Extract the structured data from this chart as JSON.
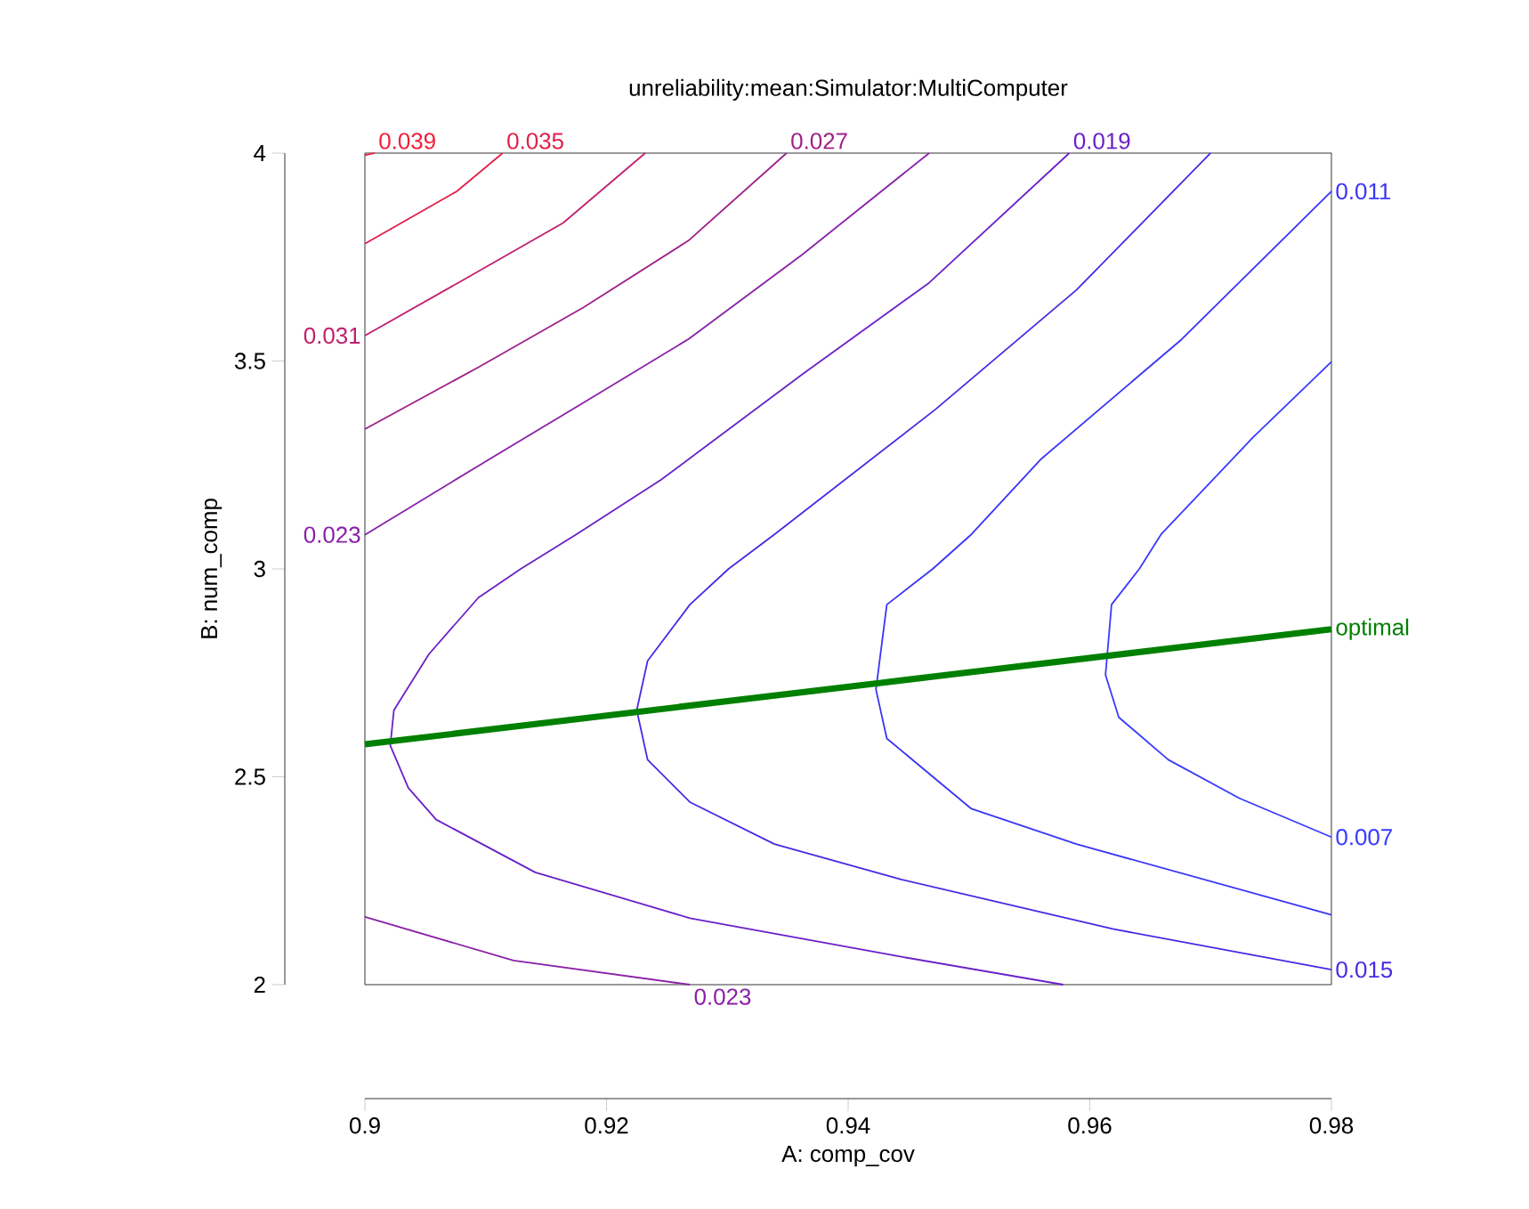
{
  "chart_data": {
    "type": "line",
    "title": "unreliability:mean:Simulator:MultiComputer",
    "xlabel": "A: comp_cov",
    "ylabel": "B: num_comp",
    "xlim": [
      0.9,
      0.98
    ],
    "ylim": [
      2,
      4
    ],
    "xticks": [
      0.9,
      0.92,
      0.94,
      0.96,
      0.98
    ],
    "yticks": [
      2,
      2.5,
      3,
      3.5,
      4
    ],
    "series": [
      {
        "name": "0.039",
        "color": "#f0203a",
        "x": [
          0.9008,
          0.9
        ],
        "values": [
          4,
          3.995
        ]
      },
      {
        "name": "0.035",
        "color": "#e0204a",
        "x": [
          0.9114,
          0.9076,
          0.9
        ],
        "values": [
          4,
          3.908,
          3.782
        ]
      },
      {
        "name": "0.031",
        "color": "#c0206e",
        "x": [
          0.9,
          0.9082,
          0.9164,
          0.9232
        ],
        "values": [
          3.561,
          3.696,
          3.832,
          4
        ]
      },
      {
        "name": "0.027",
        "color": "#a02088",
        "x": [
          0.9349,
          0.9268,
          0.9181,
          0.9094,
          0.9
        ],
        "values": [
          4,
          3.79,
          3.629,
          3.485,
          3.336
        ]
      },
      {
        "name": "0.023",
        "color": "#8a20a8",
        "x": [
          0.9,
          0.9094,
          0.9181,
          0.9268,
          0.9362,
          0.9467,
          0.93,
          0.9269,
          0.9123,
          0.9
        ],
        "values": [
          3.082,
          3.248,
          3.4,
          3.553,
          3.756,
          4,
          null,
          2.0,
          2.058,
          2.163
        ]
      },
      {
        "name": "0.019",
        "color": "#6a20c8",
        "x": [
          0.9583,
          0.9467,
          0.9362,
          0.9245,
          0.9175,
          0.9129,
          0.9094,
          0.9053,
          0.9024,
          0.9021,
          0.9036,
          0.9059,
          0.9141,
          0.9269,
          0.9444,
          0.9578
        ],
        "values": [
          4,
          3.688,
          3.468,
          3.214,
          3.083,
          3.0,
          2.931,
          2.795,
          2.66,
          2.575,
          2.473,
          2.397,
          2.27,
          2.16,
          2.067,
          2.0
        ]
      },
      {
        "name": "0.015",
        "color": "#4a28e4",
        "x": [
          0.98,
          0.9619,
          0.9444,
          0.9339,
          0.9269,
          0.9234,
          0.9225,
          0.9234,
          0.9269,
          0.9301,
          0.9339,
          0.9472,
          0.9589,
          0.97
        ],
        "values": [
          2.036,
          2.134,
          2.253,
          2.338,
          2.439,
          2.541,
          2.66,
          2.779,
          2.914,
          3.0,
          3.083,
          3.383,
          3.671,
          4
        ]
      },
      {
        "name": "0.011",
        "color": "#3a34f6",
        "x": [
          0.98,
          0.9676,
          0.956,
          0.9502,
          0.947,
          0.9432,
          0.9423,
          0.9432,
          0.9502,
          0.9589,
          0.98
        ],
        "values": [
          3.908,
          3.552,
          3.265,
          3.083,
          3.0,
          2.914,
          2.71,
          2.592,
          2.423,
          2.338,
          2.168
        ]
      },
      {
        "name": "0.007",
        "color": "#3a3aff",
        "x": [
          0.98,
          0.9724,
          0.9665,
          0.9624,
          0.9613,
          0.9618,
          0.9641,
          0.9659,
          0.9735,
          0.98
        ],
        "values": [
          2.355,
          2.448,
          2.541,
          2.643,
          2.745,
          2.914,
          3.0,
          3.083,
          3.316,
          3.498
        ]
      },
      {
        "name": "optimal",
        "type": "line",
        "color": "#008000",
        "x": [
          0.98,
          0.9
        ],
        "values": [
          2.855,
          2.578
        ]
      }
    ]
  }
}
